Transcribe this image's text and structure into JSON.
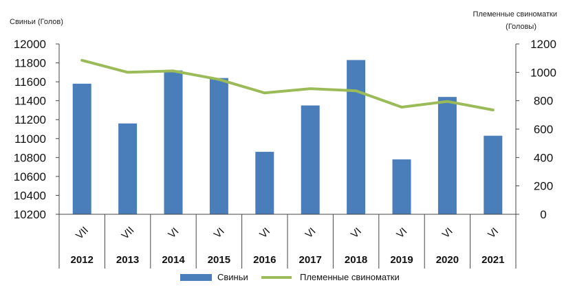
{
  "chart_data": {
    "type": "bar",
    "categories": [
      "2012",
      "2013",
      "2014",
      "2015",
      "2016",
      "2017",
      "2018",
      "2019",
      "2020",
      "2021"
    ],
    "months": [
      "VII",
      "VII",
      "VI",
      "VI",
      "VI",
      "VI",
      "VI",
      "VI",
      "VI",
      "VI"
    ],
    "series": [
      {
        "name": "Свиньи",
        "type": "bar",
        "axis": "left",
        "color": "#4a7ebb",
        "values": [
          11580,
          11160,
          11720,
          11640,
          10860,
          11350,
          11830,
          10780,
          11440,
          11030
        ]
      },
      {
        "name": "Племенные свиноматки",
        "type": "line",
        "axis": "right",
        "color": "#9bbb59",
        "values": [
          1085,
          1000,
          1010,
          950,
          855,
          885,
          870,
          755,
          795,
          735
        ]
      }
    ],
    "ylabel": "Свиньи (Голов)",
    "y2label_line1": "Племенные свиноматки",
    "y2label_line2": "(Головы)",
    "ylim": [
      10200,
      12000
    ],
    "yticks": [
      "12000",
      "11800",
      "11600",
      "11400",
      "11200",
      "11000",
      "10800",
      "10600",
      "10400",
      "10200"
    ],
    "y2lim": [
      0,
      1200
    ],
    "y2ticks": [
      "1200",
      "1000",
      "800",
      "600",
      "400",
      "200",
      "0"
    ],
    "grid": false,
    "legend_position": "bottom"
  }
}
